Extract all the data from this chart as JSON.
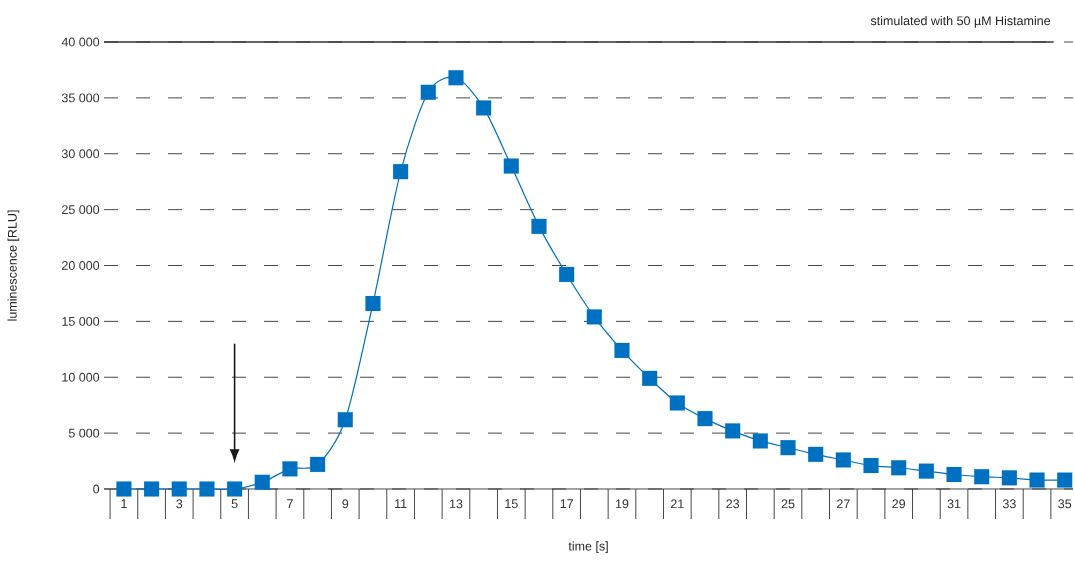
{
  "chart_data": {
    "type": "line",
    "title": "stimulated with 50 µM Histamine",
    "xlabel": "time [s]",
    "ylabel": "luminescence [RLU]",
    "categories": [
      "1",
      null,
      "3",
      null,
      "5",
      null,
      "7",
      null,
      "9",
      null,
      "11",
      null,
      "13",
      null,
      "15",
      null,
      "17",
      null,
      "19",
      null,
      "21",
      null,
      "23",
      null,
      "25",
      null,
      "27",
      null,
      "29",
      null,
      "31",
      null,
      "33",
      null,
      "35"
    ],
    "series": [
      {
        "color": "#0070c0",
        "values": [
          0,
          0,
          0,
          0,
          0,
          600,
          1800,
          2200,
          6200,
          16600,
          28400,
          35500,
          36800,
          34100,
          28900,
          23500,
          19200,
          15400,
          12400,
          9900,
          7700,
          6300,
          5200,
          4300,
          3700,
          3100,
          2600,
          2100,
          1900,
          1600,
          1300,
          1100,
          1000,
          800,
          800
        ]
      }
    ],
    "ylim": [
      0,
      40000
    ],
    "yticks": [
      {
        "value": 0,
        "label": "0"
      },
      {
        "value": 5000,
        "label": "5 000"
      },
      {
        "value": 10000,
        "label": "10 000"
      },
      {
        "value": 15000,
        "label": "15 000"
      },
      {
        "value": 20000,
        "label": "20 000"
      },
      {
        "value": 25000,
        "label": "25 000"
      },
      {
        "value": 30000,
        "label": "30 000"
      },
      {
        "value": 35000,
        "label": "35 000"
      },
      {
        "value": 40000,
        "label": "40 000"
      }
    ],
    "grid": "y",
    "marker": "square",
    "line_style": "solid"
  }
}
